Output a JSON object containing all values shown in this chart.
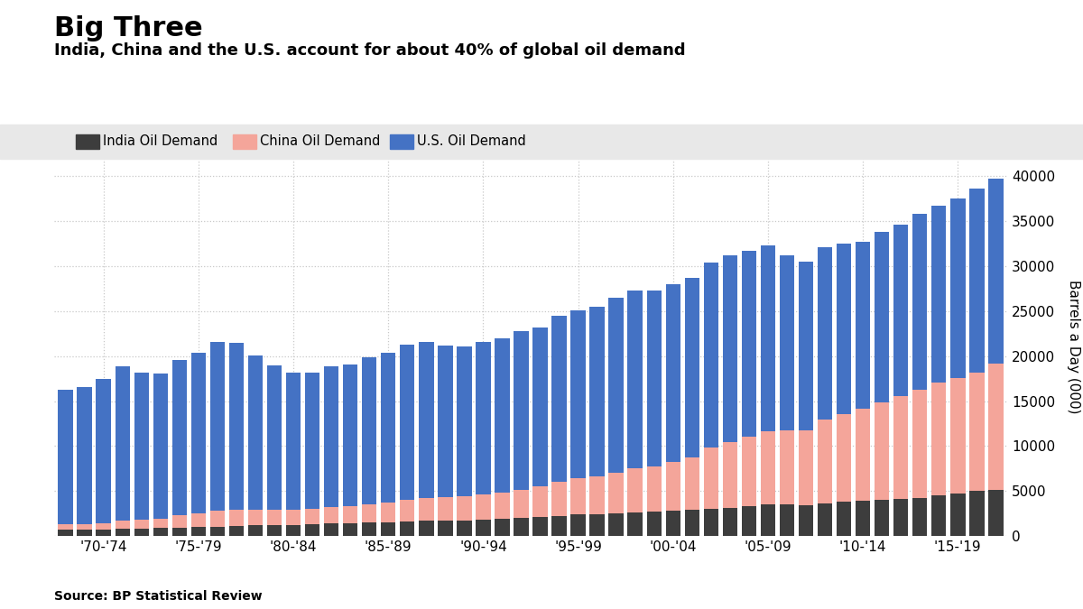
{
  "title": "Big Three",
  "subtitle": "India, China and the U.S. account for about 40% of global oil demand",
  "source": "Source: BP Statistical Review",
  "ylabel": "Barrels a Day (000)",
  "legend_labels": [
    "India Oil Demand",
    "China Oil Demand",
    "U.S. Oil Demand"
  ],
  "colors": {
    "india": "#3d3d3d",
    "china": "#f4a59a",
    "us": "#4472c4"
  },
  "years": [
    1970,
    1971,
    1972,
    1973,
    1974,
    1975,
    1976,
    1977,
    1978,
    1979,
    1980,
    1981,
    1982,
    1983,
    1984,
    1985,
    1986,
    1987,
    1988,
    1989,
    1990,
    1991,
    1992,
    1993,
    1994,
    1995,
    1996,
    1997,
    1998,
    1999,
    2000,
    2001,
    2002,
    2003,
    2004,
    2005,
    2006,
    2007,
    2008,
    2009,
    2010,
    2011,
    2012,
    2013,
    2014,
    2015,
    2016,
    2017,
    2018,
    2019
  ],
  "india": [
    660,
    700,
    750,
    820,
    840,
    870,
    930,
    980,
    1040,
    1110,
    1180,
    1180,
    1220,
    1280,
    1360,
    1440,
    1480,
    1530,
    1600,
    1680,
    1720,
    1750,
    1830,
    1890,
    1960,
    2070,
    2220,
    2360,
    2440,
    2490,
    2590,
    2680,
    2820,
    2900,
    3000,
    3150,
    3350,
    3500,
    3560,
    3420,
    3650,
    3770,
    3900,
    3990,
    4070,
    4230,
    4490,
    4690,
    4990,
    5150
  ],
  "china": [
    610,
    640,
    700,
    900,
    990,
    1060,
    1350,
    1500,
    1750,
    1830,
    1760,
    1700,
    1650,
    1720,
    1850,
    1890,
    2050,
    2180,
    2390,
    2560,
    2600,
    2620,
    2770,
    2920,
    3130,
    3420,
    3810,
    4110,
    4200,
    4490,
    4980,
    5020,
    5390,
    5840,
    6880,
    7260,
    7650,
    8130,
    8150,
    8330,
    9310,
    9820,
    10280,
    10840,
    11490,
    12060,
    12560,
    12840,
    13200,
    14050
  ],
  "us": [
    15000,
    15200,
    16000,
    17100,
    16300,
    16100,
    17300,
    17900,
    18800,
    18500,
    17100,
    16100,
    15300,
    15200,
    15700,
    15700,
    16300,
    16700,
    17300,
    17300,
    16900,
    16700,
    17000,
    17200,
    17700,
    17700,
    18500,
    18600,
    18900,
    19500,
    19700,
    19600,
    19760,
    20000,
    20520,
    20800,
    20680,
    20680,
    19490,
    18770,
    19180,
    18882,
    18490,
    18961,
    19106,
    19530,
    19690,
    19960,
    20456,
    20540
  ],
  "ylim": [
    0,
    42000
  ],
  "yticks": [
    0,
    5000,
    10000,
    15000,
    20000,
    25000,
    30000,
    35000,
    40000
  ],
  "bg_color": "#ffffff",
  "grid_color": "#c8c8c8",
  "legend_bg": "#e8e8e8",
  "title_fontsize": 22,
  "subtitle_fontsize": 13,
  "legend_fontsize": 10.5
}
